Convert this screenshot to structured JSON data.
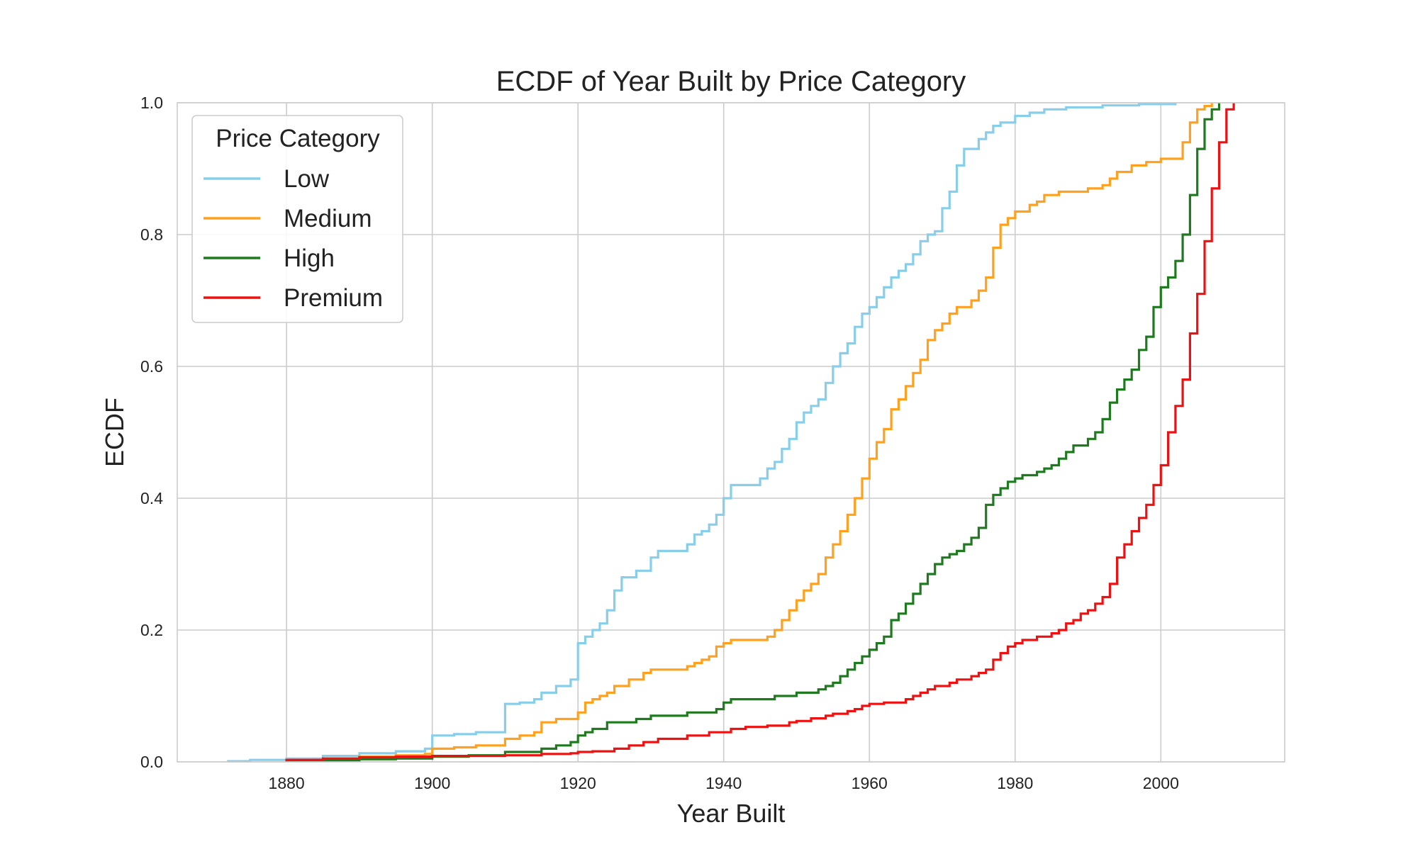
{
  "chart_data": {
    "type": "line",
    "step": true,
    "title": "ECDF of Year Built by Price Category",
    "xlabel": "Year Built",
    "ylabel": "ECDF",
    "xlim": [
      1865,
      2017
    ],
    "ylim": [
      0,
      1
    ],
    "xticks": [
      1880,
      1900,
      1920,
      1940,
      1960,
      1980,
      2000
    ],
    "xtick_labels": [
      "1880",
      "1900",
      "1920",
      "1940",
      "1960",
      "1980",
      "2000"
    ],
    "yticks": [
      0,
      0.2,
      0.4,
      0.6,
      0.8,
      1.0
    ],
    "ytick_labels": [
      "0.0",
      "0.2",
      "0.4",
      "0.6",
      "0.8",
      "1.0"
    ],
    "grid": true,
    "legend": {
      "title": "Price Category",
      "placement": "top-left"
    },
    "series": [
      {
        "name": "Low",
        "color": "#87ceeb",
        "points": [
          [
            1872,
            0.001
          ],
          [
            1875,
            0.003
          ],
          [
            1880,
            0.005
          ],
          [
            1885,
            0.009
          ],
          [
            1890,
            0.013
          ],
          [
            1895,
            0.016
          ],
          [
            1899,
            0.02
          ],
          [
            1900,
            0.04
          ],
          [
            1903,
            0.042
          ],
          [
            1906,
            0.045
          ],
          [
            1910,
            0.088
          ],
          [
            1912,
            0.09
          ],
          [
            1914,
            0.095
          ],
          [
            1915,
            0.105
          ],
          [
            1917,
            0.115
          ],
          [
            1919,
            0.125
          ],
          [
            1920,
            0.18
          ],
          [
            1921,
            0.19
          ],
          [
            1922,
            0.2
          ],
          [
            1923,
            0.21
          ],
          [
            1924,
            0.23
          ],
          [
            1925,
            0.26
          ],
          [
            1926,
            0.28
          ],
          [
            1928,
            0.29
          ],
          [
            1930,
            0.31
          ],
          [
            1931,
            0.32
          ],
          [
            1935,
            0.33
          ],
          [
            1936,
            0.345
          ],
          [
            1937,
            0.35
          ],
          [
            1938,
            0.36
          ],
          [
            1939,
            0.375
          ],
          [
            1940,
            0.4
          ],
          [
            1941,
            0.42
          ],
          [
            1945,
            0.43
          ],
          [
            1946,
            0.445
          ],
          [
            1947,
            0.455
          ],
          [
            1948,
            0.475
          ],
          [
            1949,
            0.49
          ],
          [
            1950,
            0.515
          ],
          [
            1951,
            0.53
          ],
          [
            1952,
            0.54
          ],
          [
            1953,
            0.55
          ],
          [
            1954,
            0.575
          ],
          [
            1955,
            0.6
          ],
          [
            1956,
            0.62
          ],
          [
            1957,
            0.635
          ],
          [
            1958,
            0.66
          ],
          [
            1959,
            0.68
          ],
          [
            1960,
            0.69
          ],
          [
            1961,
            0.705
          ],
          [
            1962,
            0.72
          ],
          [
            1963,
            0.735
          ],
          [
            1964,
            0.745
          ],
          [
            1965,
            0.755
          ],
          [
            1966,
            0.77
          ],
          [
            1967,
            0.79
          ],
          [
            1968,
            0.8
          ],
          [
            1969,
            0.805
          ],
          [
            1970,
            0.84
          ],
          [
            1971,
            0.865
          ],
          [
            1972,
            0.905
          ],
          [
            1973,
            0.93
          ],
          [
            1975,
            0.945
          ],
          [
            1976,
            0.955
          ],
          [
            1977,
            0.965
          ],
          [
            1978,
            0.97
          ],
          [
            1980,
            0.98
          ],
          [
            1982,
            0.985
          ],
          [
            1984,
            0.99
          ],
          [
            1987,
            0.993
          ],
          [
            1992,
            0.996
          ],
          [
            1997,
            0.998
          ],
          [
            2002,
            1.0
          ]
        ]
      },
      {
        "name": "Medium",
        "color": "#ffa11f",
        "points": [
          [
            1880,
            0.002
          ],
          [
            1885,
            0.005
          ],
          [
            1890,
            0.008
          ],
          [
            1895,
            0.01
          ],
          [
            1899,
            0.012
          ],
          [
            1900,
            0.02
          ],
          [
            1903,
            0.022
          ],
          [
            1906,
            0.025
          ],
          [
            1910,
            0.035
          ],
          [
            1912,
            0.04
          ],
          [
            1914,
            0.045
          ],
          [
            1915,
            0.06
          ],
          [
            1917,
            0.065
          ],
          [
            1920,
            0.075
          ],
          [
            1921,
            0.09
          ],
          [
            1922,
            0.095
          ],
          [
            1923,
            0.1
          ],
          [
            1924,
            0.105
          ],
          [
            1925,
            0.115
          ],
          [
            1927,
            0.125
          ],
          [
            1929,
            0.135
          ],
          [
            1930,
            0.14
          ],
          [
            1935,
            0.145
          ],
          [
            1936,
            0.15
          ],
          [
            1937,
            0.155
          ],
          [
            1938,
            0.16
          ],
          [
            1939,
            0.175
          ],
          [
            1940,
            0.18
          ],
          [
            1941,
            0.185
          ],
          [
            1946,
            0.19
          ],
          [
            1947,
            0.2
          ],
          [
            1948,
            0.215
          ],
          [
            1949,
            0.23
          ],
          [
            1950,
            0.245
          ],
          [
            1951,
            0.26
          ],
          [
            1952,
            0.27
          ],
          [
            1953,
            0.285
          ],
          [
            1954,
            0.31
          ],
          [
            1955,
            0.33
          ],
          [
            1956,
            0.35
          ],
          [
            1957,
            0.375
          ],
          [
            1958,
            0.4
          ],
          [
            1959,
            0.43
          ],
          [
            1960,
            0.46
          ],
          [
            1961,
            0.485
          ],
          [
            1962,
            0.505
          ],
          [
            1963,
            0.535
          ],
          [
            1964,
            0.55
          ],
          [
            1965,
            0.57
          ],
          [
            1966,
            0.59
          ],
          [
            1967,
            0.61
          ],
          [
            1968,
            0.64
          ],
          [
            1969,
            0.655
          ],
          [
            1970,
            0.665
          ],
          [
            1971,
            0.68
          ],
          [
            1972,
            0.69
          ],
          [
            1974,
            0.7
          ],
          [
            1975,
            0.715
          ],
          [
            1976,
            0.735
          ],
          [
            1977,
            0.78
          ],
          [
            1978,
            0.815
          ],
          [
            1979,
            0.825
          ],
          [
            1980,
            0.835
          ],
          [
            1982,
            0.845
          ],
          [
            1983,
            0.85
          ],
          [
            1984,
            0.86
          ],
          [
            1986,
            0.865
          ],
          [
            1990,
            0.87
          ],
          [
            1992,
            0.875
          ],
          [
            1993,
            0.885
          ],
          [
            1994,
            0.895
          ],
          [
            1996,
            0.905
          ],
          [
            1998,
            0.91
          ],
          [
            2000,
            0.915
          ],
          [
            2003,
            0.94
          ],
          [
            2004,
            0.97
          ],
          [
            2005,
            0.99
          ],
          [
            2006,
            0.995
          ],
          [
            2007,
            1.0
          ]
        ]
      },
      {
        "name": "High",
        "color": "#1f7a1f",
        "points": [
          [
            1880,
            0.002
          ],
          [
            1890,
            0.004
          ],
          [
            1895,
            0.005
          ],
          [
            1900,
            0.008
          ],
          [
            1905,
            0.01
          ],
          [
            1910,
            0.015
          ],
          [
            1915,
            0.02
          ],
          [
            1917,
            0.025
          ],
          [
            1919,
            0.03
          ],
          [
            1920,
            0.04
          ],
          [
            1921,
            0.045
          ],
          [
            1922,
            0.05
          ],
          [
            1924,
            0.06
          ],
          [
            1928,
            0.065
          ],
          [
            1930,
            0.07
          ],
          [
            1935,
            0.075
          ],
          [
            1939,
            0.08
          ],
          [
            1940,
            0.09
          ],
          [
            1941,
            0.095
          ],
          [
            1947,
            0.1
          ],
          [
            1950,
            0.105
          ],
          [
            1953,
            0.11
          ],
          [
            1954,
            0.115
          ],
          [
            1955,
            0.12
          ],
          [
            1956,
            0.13
          ],
          [
            1957,
            0.14
          ],
          [
            1958,
            0.15
          ],
          [
            1959,
            0.16
          ],
          [
            1960,
            0.17
          ],
          [
            1961,
            0.18
          ],
          [
            1962,
            0.19
          ],
          [
            1963,
            0.215
          ],
          [
            1964,
            0.225
          ],
          [
            1965,
            0.24
          ],
          [
            1966,
            0.255
          ],
          [
            1967,
            0.27
          ],
          [
            1968,
            0.285
          ],
          [
            1969,
            0.3
          ],
          [
            1970,
            0.31
          ],
          [
            1971,
            0.315
          ],
          [
            1972,
            0.32
          ],
          [
            1973,
            0.33
          ],
          [
            1974,
            0.34
          ],
          [
            1975,
            0.355
          ],
          [
            1976,
            0.39
          ],
          [
            1977,
            0.405
          ],
          [
            1978,
            0.415
          ],
          [
            1979,
            0.425
          ],
          [
            1980,
            0.43
          ],
          [
            1981,
            0.435
          ],
          [
            1983,
            0.44
          ],
          [
            1984,
            0.445
          ],
          [
            1985,
            0.45
          ],
          [
            1986,
            0.46
          ],
          [
            1987,
            0.47
          ],
          [
            1988,
            0.48
          ],
          [
            1990,
            0.49
          ],
          [
            1991,
            0.5
          ],
          [
            1992,
            0.52
          ],
          [
            1993,
            0.545
          ],
          [
            1994,
            0.565
          ],
          [
            1995,
            0.58
          ],
          [
            1996,
            0.595
          ],
          [
            1997,
            0.625
          ],
          [
            1998,
            0.645
          ],
          [
            1999,
            0.69
          ],
          [
            2000,
            0.72
          ],
          [
            2001,
            0.735
          ],
          [
            2002,
            0.76
          ],
          [
            2003,
            0.8
          ],
          [
            2004,
            0.86
          ],
          [
            2005,
            0.93
          ],
          [
            2006,
            0.975
          ],
          [
            2007,
            0.99
          ],
          [
            2008,
            1.0
          ]
        ]
      },
      {
        "name": "Premium",
        "color": "#ee1111",
        "points": [
          [
            1880,
            0.003
          ],
          [
            1885,
            0.005
          ],
          [
            1890,
            0.007
          ],
          [
            1895,
            0.008
          ],
          [
            1900,
            0.009
          ],
          [
            1910,
            0.01
          ],
          [
            1915,
            0.012
          ],
          [
            1919,
            0.013
          ],
          [
            1920,
            0.015
          ],
          [
            1922,
            0.016
          ],
          [
            1925,
            0.02
          ],
          [
            1927,
            0.025
          ],
          [
            1929,
            0.03
          ],
          [
            1931,
            0.035
          ],
          [
            1935,
            0.04
          ],
          [
            1938,
            0.045
          ],
          [
            1941,
            0.05
          ],
          [
            1943,
            0.053
          ],
          [
            1946,
            0.055
          ],
          [
            1949,
            0.06
          ],
          [
            1950,
            0.062
          ],
          [
            1952,
            0.066
          ],
          [
            1954,
            0.07
          ],
          [
            1955,
            0.073
          ],
          [
            1957,
            0.077
          ],
          [
            1958,
            0.08
          ],
          [
            1959,
            0.085
          ],
          [
            1960,
            0.088
          ],
          [
            1962,
            0.09
          ],
          [
            1965,
            0.095
          ],
          [
            1966,
            0.1
          ],
          [
            1967,
            0.105
          ],
          [
            1968,
            0.11
          ],
          [
            1969,
            0.115
          ],
          [
            1971,
            0.12
          ],
          [
            1972,
            0.125
          ],
          [
            1974,
            0.13
          ],
          [
            1975,
            0.135
          ],
          [
            1976,
            0.14
          ],
          [
            1977,
            0.155
          ],
          [
            1978,
            0.165
          ],
          [
            1979,
            0.175
          ],
          [
            1980,
            0.18
          ],
          [
            1981,
            0.185
          ],
          [
            1983,
            0.19
          ],
          [
            1985,
            0.195
          ],
          [
            1986,
            0.2
          ],
          [
            1987,
            0.21
          ],
          [
            1988,
            0.215
          ],
          [
            1989,
            0.225
          ],
          [
            1990,
            0.23
          ],
          [
            1991,
            0.24
          ],
          [
            1992,
            0.25
          ],
          [
            1993,
            0.27
          ],
          [
            1994,
            0.31
          ],
          [
            1995,
            0.33
          ],
          [
            1996,
            0.35
          ],
          [
            1997,
            0.37
          ],
          [
            1998,
            0.39
          ],
          [
            1999,
            0.42
          ],
          [
            2000,
            0.45
          ],
          [
            2001,
            0.5
          ],
          [
            2002,
            0.54
          ],
          [
            2003,
            0.58
          ],
          [
            2004,
            0.65
          ],
          [
            2005,
            0.71
          ],
          [
            2006,
            0.79
          ],
          [
            2007,
            0.87
          ],
          [
            2008,
            0.94
          ],
          [
            2009,
            0.99
          ],
          [
            2010,
            1.0
          ]
        ]
      }
    ]
  }
}
